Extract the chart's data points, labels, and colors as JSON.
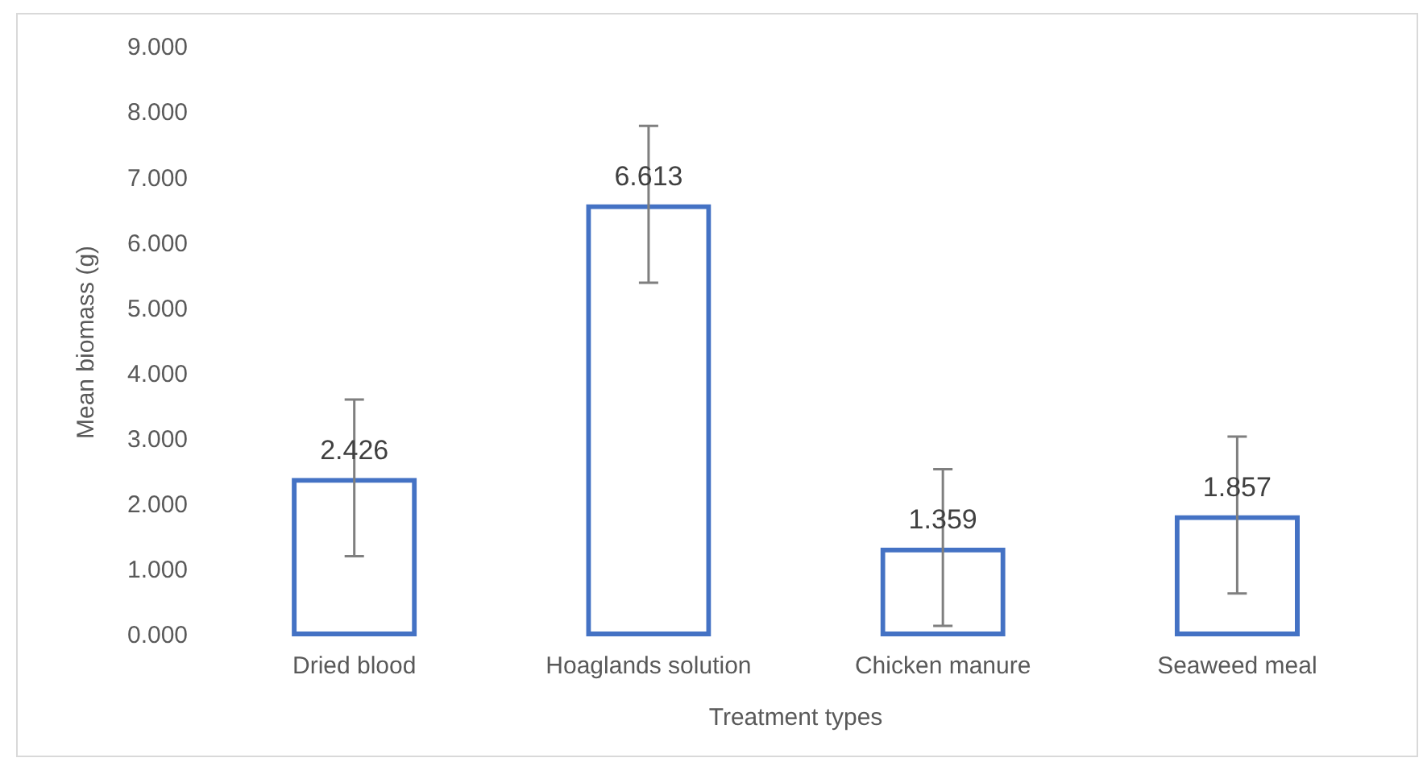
{
  "chart_data": {
    "type": "bar",
    "xlabel": "Treatment types",
    "ylabel": "Mean biomass (g)",
    "categories": [
      "Dried blood",
      "Hoaglands solution",
      "Chicken manure",
      "Seaweed meal"
    ],
    "values": [
      2.426,
      6.613,
      1.359,
      1.857
    ],
    "color": "#4472c4",
    "errors": [
      1.2,
      1.2,
      1.2,
      1.2
    ],
    "ylim": [
      0,
      9
    ],
    "yticks": [
      {
        "value": 0,
        "label": "0.000"
      },
      {
        "value": 1,
        "label": "1.000"
      },
      {
        "value": 2,
        "label": "2.000"
      },
      {
        "value": 3,
        "label": "3.000"
      },
      {
        "value": 4,
        "label": "4.000"
      },
      {
        "value": 5,
        "label": "5.000"
      },
      {
        "value": 6,
        "label": "6.000"
      },
      {
        "value": 7,
        "label": "7.000"
      },
      {
        "value": 8,
        "label": "8.000"
      },
      {
        "value": 9,
        "label": "9.000"
      }
    ],
    "data_labels": true,
    "grid": false,
    "legend": false
  }
}
